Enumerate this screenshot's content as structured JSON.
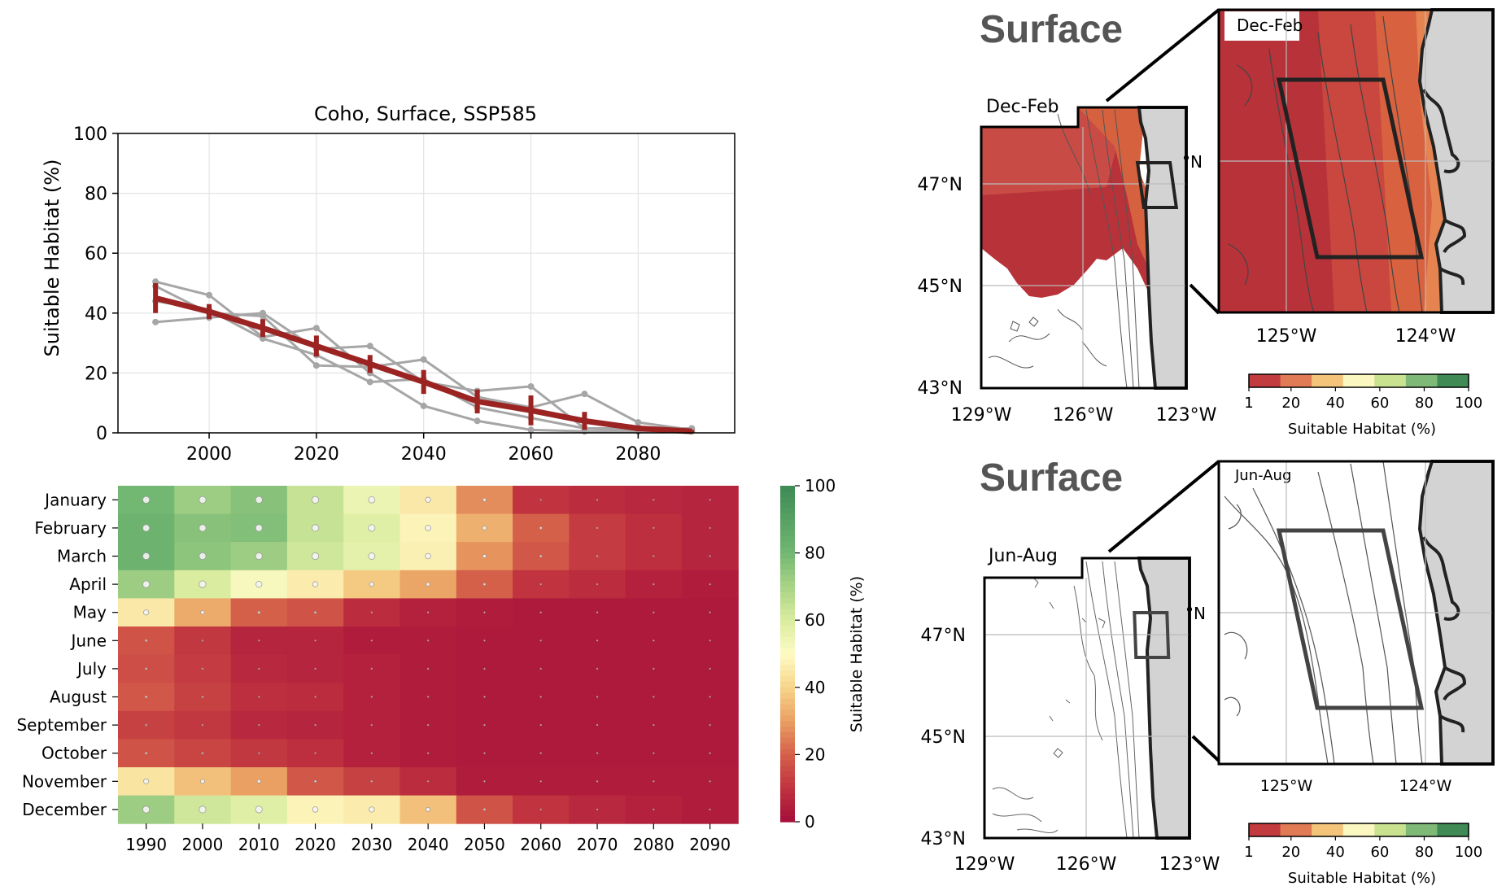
{
  "line_chart": {
    "title": "Coho, Surface, SSP585",
    "ylabel": "Suitable Habitat (%)",
    "x_ticks": [
      2000,
      2020,
      2040,
      2060,
      2080
    ],
    "y_ticks": [
      0,
      20,
      40,
      60,
      80,
      100
    ]
  },
  "heatmap": {
    "months": [
      "January",
      "February",
      "March",
      "April",
      "May",
      "June",
      "July",
      "August",
      "September",
      "October",
      "November",
      "December"
    ],
    "decades": [
      1990,
      2000,
      2010,
      2020,
      2030,
      2040,
      2050,
      2060,
      2070,
      2080,
      2090
    ],
    "colorbar_label": "Suitable Habitat (%)",
    "colorbar_ticks": [
      0,
      20,
      40,
      60,
      80,
      100
    ]
  },
  "maps": [
    {
      "heading": "Surface",
      "season": "Dec-Feb",
      "inset_label": "Dec-Feb",
      "lat_labels": [
        "47°N",
        "45°N",
        "43°N"
      ],
      "lon_labels": [
        "129°W",
        "126°W",
        "123°W"
      ],
      "inset_lon_labels": [
        "125°W",
        "124°W"
      ],
      "inset_lat_label": "°N",
      "cbar_ticks": [
        "1",
        "20",
        "40",
        "60",
        "80",
        "100"
      ],
      "cbar_label": "Suitable Habitat (%)",
      "filled": true
    },
    {
      "heading": "Surface",
      "season": "Jun-Aug",
      "inset_label": "Jun-Aug",
      "lat_labels": [
        "47°N",
        "45°N",
        "43°N"
      ],
      "lon_labels": [
        "129°W",
        "126°W",
        "123°W"
      ],
      "inset_lon_labels": [
        "125°W",
        "124°W"
      ],
      "inset_lat_label": "°N",
      "cbar_ticks": [
        "1",
        "20",
        "40",
        "60",
        "80",
        "100"
      ],
      "cbar_label": "Suitable Habitat (%)",
      "filled": false
    }
  ],
  "colors": {
    "mean_line": "#9b2423",
    "member_line": "#a6a6a6",
    "land": "#d3d3d3",
    "heading": "#555555",
    "discrete_scale": [
      "#c23b3e",
      "#e07b55",
      "#f3c47a",
      "#fbf7c0",
      "#c9e28f",
      "#7fb978",
      "#3f8a55"
    ]
  },
  "chart_data": [
    {
      "type": "line",
      "title": "Coho, Surface, SSP585",
      "xlabel": "",
      "ylabel": "Suitable Habitat (%)",
      "xlim": [
        1983,
        2098
      ],
      "ylim": [
        0,
        100
      ],
      "grid": true,
      "x": [
        1990,
        2000,
        2010,
        2020,
        2030,
        2040,
        2050,
        2060,
        2070,
        2080,
        2090
      ],
      "series": [
        {
          "role": "ensemble mean",
          "values": [
            45,
            40.5,
            35,
            29,
            23,
            17,
            10.5,
            7.5,
            4,
            1.5,
            0.5
          ],
          "error": [
            5,
            2.5,
            3,
            3.5,
            3,
            4,
            4,
            5,
            3,
            1,
            0.5
          ]
        },
        {
          "role": "member",
          "values": [
            50.5,
            46,
            32,
            35,
            20,
            9,
            4,
            1,
            0.5,
            0.5,
            0.5
          ]
        },
        {
          "role": "member",
          "values": [
            37,
            38.5,
            40,
            28,
            29,
            17,
            14,
            15.5,
            1.5,
            1,
            0.5
          ]
        },
        {
          "role": "member",
          "values": [
            49,
            40,
            39,
            22.5,
            22,
            24.5,
            12,
            8.5,
            13,
            3.5,
            1
          ]
        },
        {
          "role": "member",
          "values": [
            44,
            41,
            31.5,
            26,
            17,
            18,
            8.5,
            5,
            1.5,
            1.5,
            1.5
          ]
        }
      ]
    },
    {
      "type": "heatmap",
      "xlabel": "",
      "ylabel": "",
      "x": [
        1990,
        2000,
        2010,
        2020,
        2030,
        2040,
        2050,
        2060,
        2070,
        2080,
        2090
      ],
      "y": [
        "January",
        "February",
        "March",
        "April",
        "May",
        "June",
        "July",
        "August",
        "September",
        "October",
        "November",
        "December"
      ],
      "colorbar": {
        "label": "Suitable Habitat (%)",
        "range": [
          0,
          100
        ]
      },
      "values": [
        [
          80,
          72,
          76,
          64,
          55,
          45,
          27,
          10,
          8,
          7,
          6
        ],
        [
          82,
          76,
          77,
          64,
          58,
          48,
          33,
          20,
          12,
          9,
          6
        ],
        [
          82,
          75,
          72,
          62,
          57,
          47,
          28,
          18,
          12,
          9,
          6
        ],
        [
          72,
          60,
          52,
          46,
          38,
          31,
          20,
          10,
          8,
          5,
          4
        ],
        [
          45,
          32,
          20,
          17,
          8,
          5,
          4,
          3,
          3,
          3,
          3
        ],
        [
          17,
          11,
          6,
          6,
          4,
          4,
          3,
          3,
          3,
          3,
          3
        ],
        [
          16,
          12,
          7,
          6,
          5,
          4,
          3,
          3,
          3,
          3,
          3
        ],
        [
          18,
          13,
          9,
          8,
          5,
          4,
          3,
          3,
          3,
          3,
          3
        ],
        [
          13,
          11,
          7,
          6,
          5,
          4,
          3,
          3,
          3,
          3,
          3
        ],
        [
          17,
          14,
          11,
          9,
          5,
          4,
          3,
          3,
          3,
          3,
          3
        ],
        [
          44,
          36,
          30,
          18,
          13,
          8,
          4,
          4,
          4,
          4,
          4
        ],
        [
          72,
          62,
          58,
          48,
          46,
          36,
          17,
          10,
          7,
          5,
          4
        ]
      ]
    }
  ]
}
